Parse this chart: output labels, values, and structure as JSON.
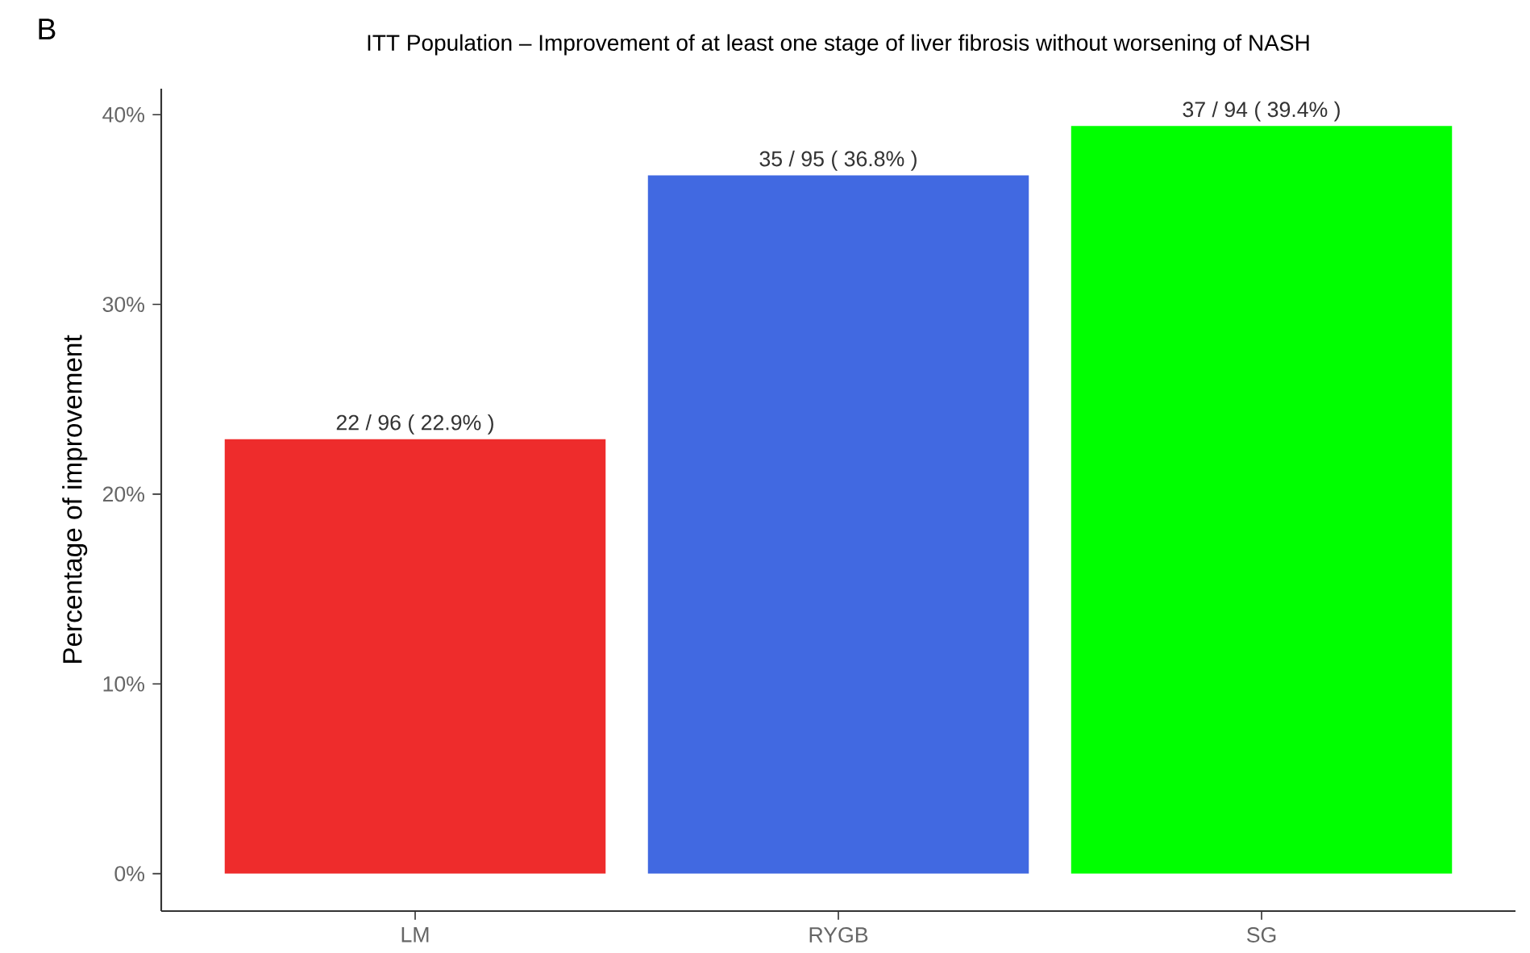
{
  "chart_data": {
    "type": "bar",
    "title": "ITT Population – Improvement of at least one stage of liver fibrosis without worsening of NASH",
    "ylabel": "Percentage of improvement",
    "annotations": [
      "B"
    ],
    "categories": [
      "LM",
      "RYGB",
      "SG"
    ],
    "values": [
      22.9,
      36.8,
      39.4
    ],
    "colors": [
      "#ee2c2c",
      "#4169e1",
      "#00ff00"
    ],
    "value_labels": [
      "22 / 96 ( 22.9% )",
      "35 / 95 ( 36.8% )",
      "37 / 94 ( 39.4% )"
    ],
    "ylim": [
      -1.97,
      41.37
    ],
    "yticks": [
      {
        "value": 0,
        "label": "0%"
      },
      {
        "value": 10,
        "label": "10%"
      },
      {
        "value": 20,
        "label": "20%"
      },
      {
        "value": 30,
        "label": "30%"
      },
      {
        "value": 40,
        "label": "40%"
      }
    ],
    "grid": false
  }
}
